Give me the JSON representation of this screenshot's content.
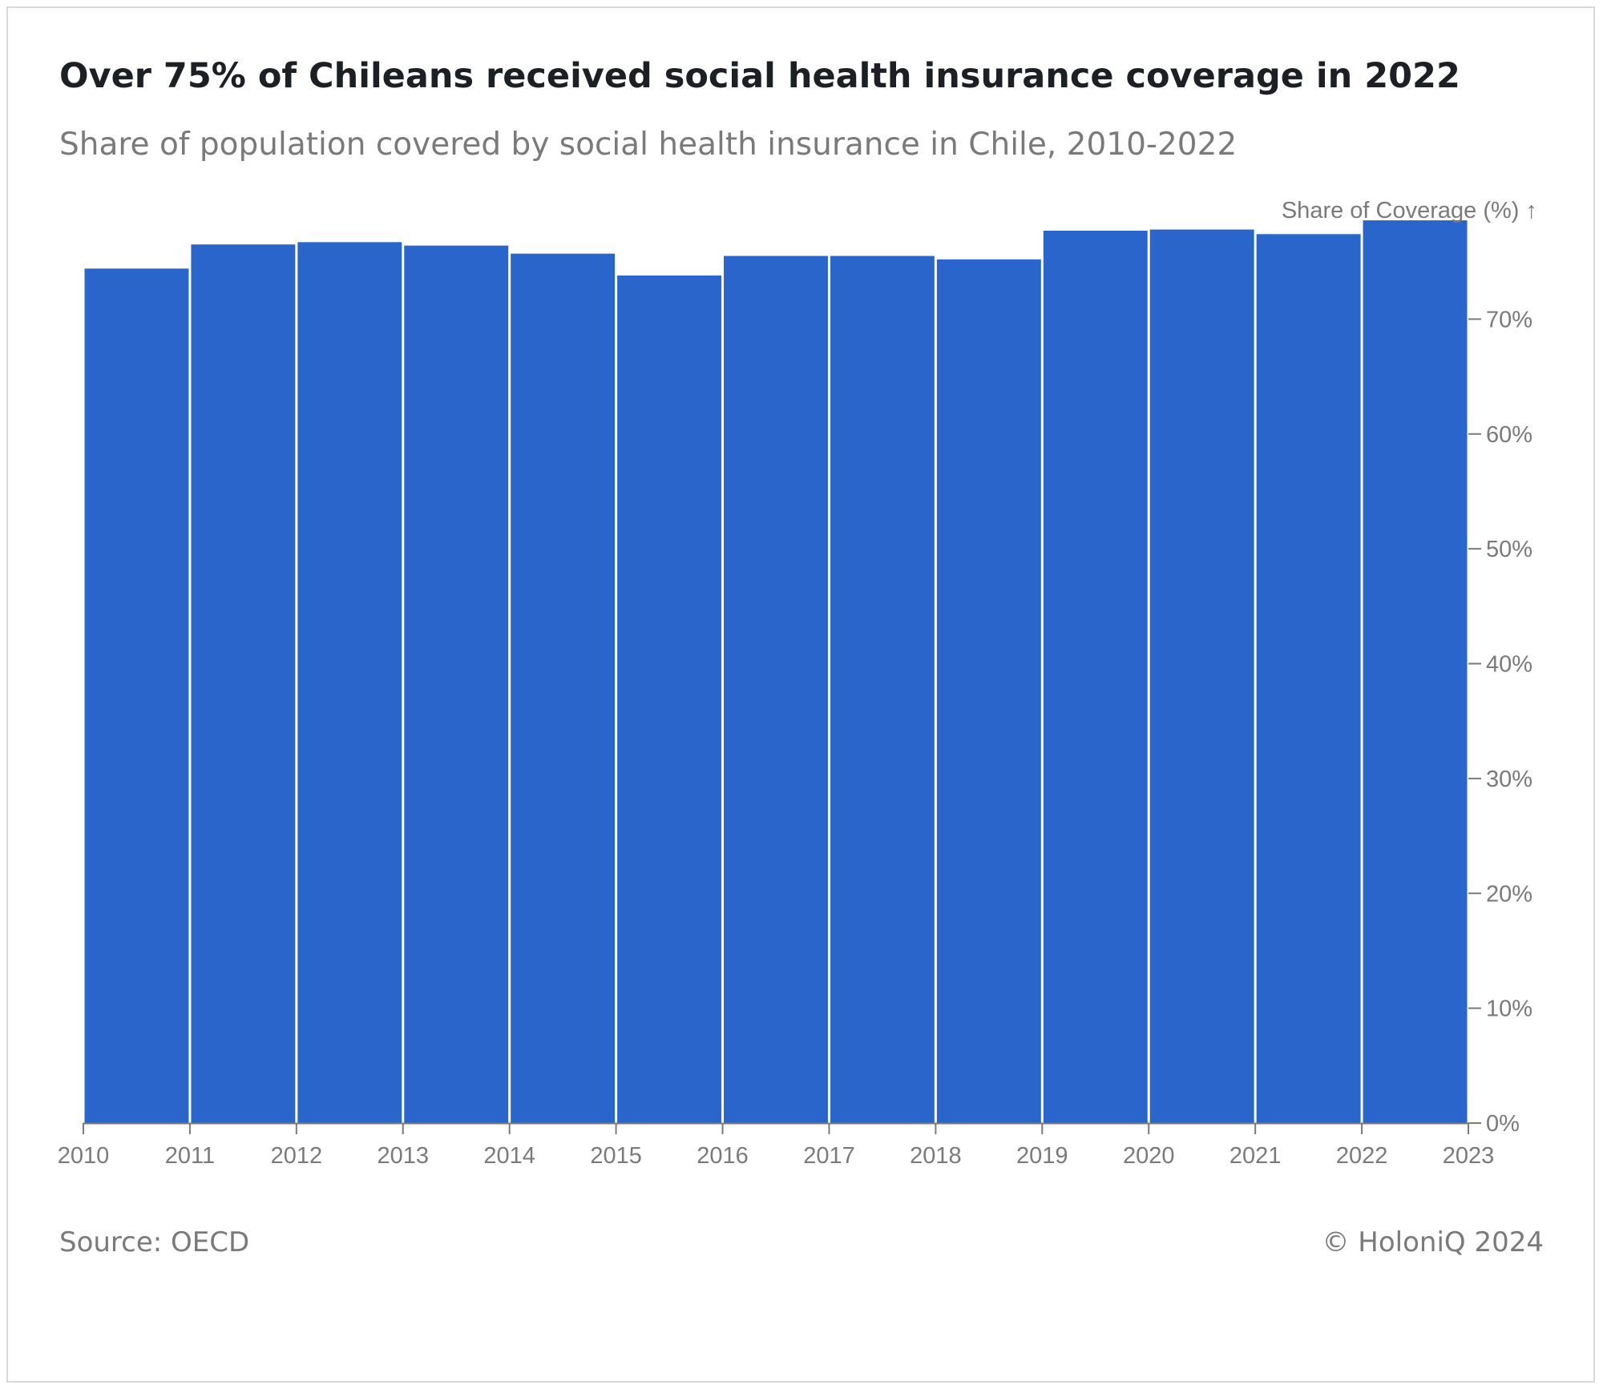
{
  "title": "Over 75% of Chileans received social health insurance coverage in 2022",
  "subtitle": "Share of population covered by social health insurance in Chile, 2010-2022",
  "source": "Source: OECD",
  "copyright": "© HoloniQ 2024",
  "colors": {
    "bar": "#2a65cc",
    "axis": "#7a7a7a",
    "text": "#1c1f24"
  },
  "chart_data": {
    "type": "bar",
    "ylabel": "Share of Coverage (%) ↑",
    "xlabel": "",
    "ylim": [
      0,
      80
    ],
    "y_axis_position": "right",
    "grid": false,
    "y_ticks": [
      0,
      10,
      20,
      30,
      40,
      50,
      60,
      70
    ],
    "y_tick_labels": [
      "0%",
      "10%",
      "20%",
      "30%",
      "40%",
      "50%",
      "60%",
      "70%"
    ],
    "x_ticks": [
      "2010",
      "2011",
      "2012",
      "2013",
      "2014",
      "2015",
      "2016",
      "2017",
      "2018",
      "2019",
      "2020",
      "2021",
      "2022",
      "2023"
    ],
    "bins": [
      {
        "start": "2010",
        "end": "2011",
        "value": 74.4
      },
      {
        "start": "2011",
        "end": "2012",
        "value": 76.5
      },
      {
        "start": "2012",
        "end": "2013",
        "value": 76.7
      },
      {
        "start": "2013",
        "end": "2014",
        "value": 76.4
      },
      {
        "start": "2014",
        "end": "2015",
        "value": 75.7
      },
      {
        "start": "2015",
        "end": "2016",
        "value": 73.8
      },
      {
        "start": "2016",
        "end": "2017",
        "value": 75.5
      },
      {
        "start": "2017",
        "end": "2018",
        "value": 75.5
      },
      {
        "start": "2018",
        "end": "2019",
        "value": 75.2
      },
      {
        "start": "2019",
        "end": "2020",
        "value": 77.7
      },
      {
        "start": "2020",
        "end": "2021",
        "value": 77.8
      },
      {
        "start": "2021",
        "end": "2022",
        "value": 77.4
      },
      {
        "start": "2022",
        "end": "2023",
        "value": 78.6
      }
    ]
  }
}
